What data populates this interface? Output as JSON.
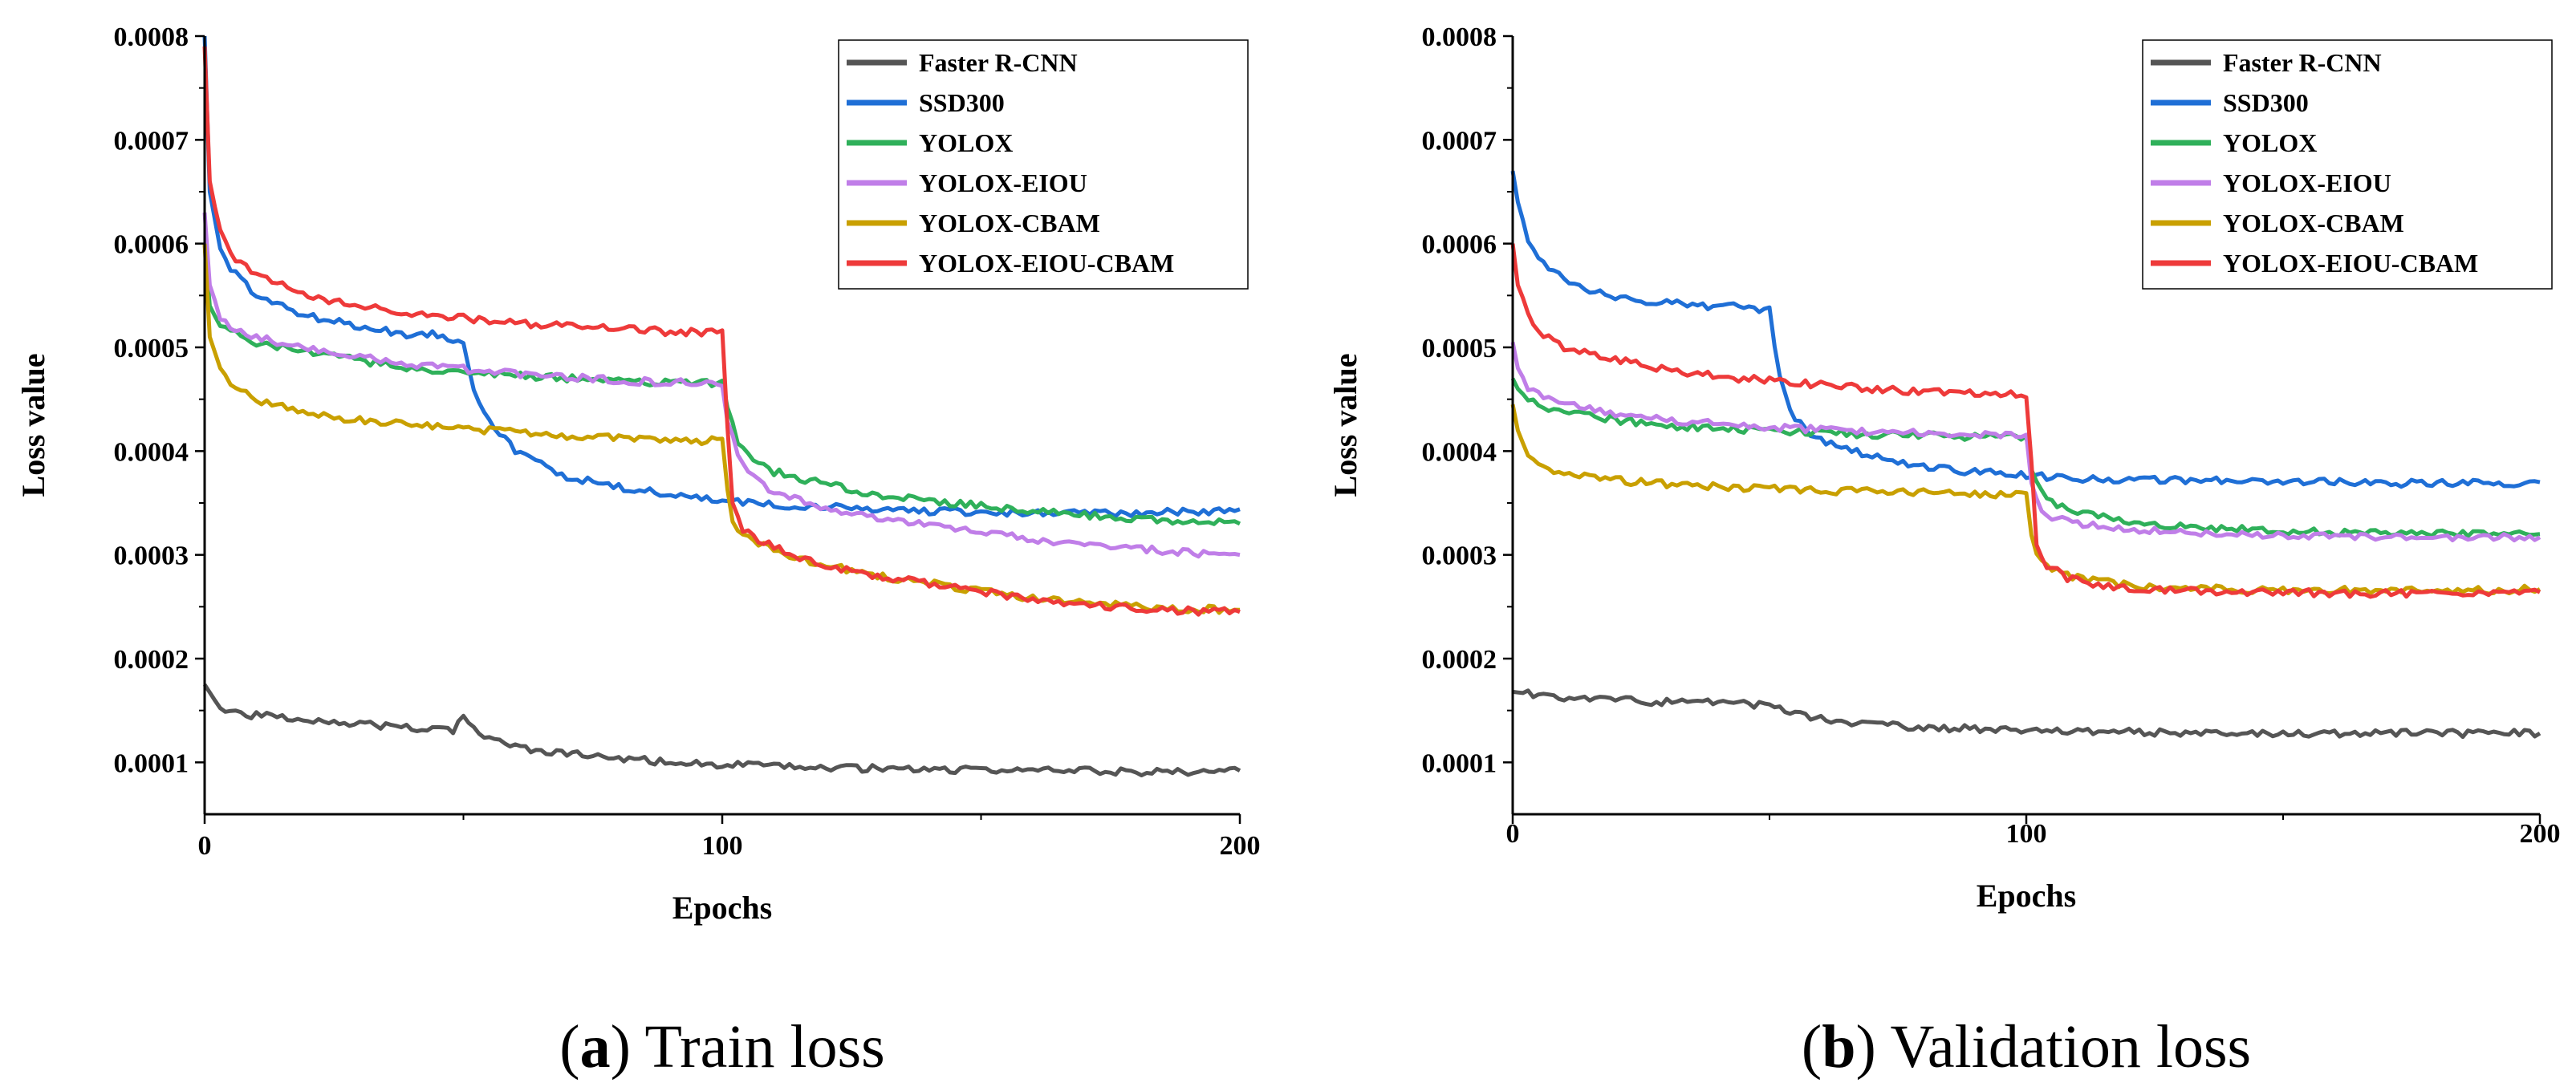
{
  "colors": {
    "Faster R-CNN": "#555555",
    "SSD300": "#1f6fd6",
    "YOLOX": "#2fb05a",
    "YOLOX-EIOU": "#c07ee8",
    "YOLOX-CBAM": "#c9a000",
    "YOLOX-EIOU-CBAM": "#ee3a3a"
  },
  "chart_data": [
    {
      "type": "line",
      "caption_letter": "a",
      "caption_text": " Train loss",
      "title": "",
      "xlabel": "Epochs",
      "ylabel": "Loss value",
      "xlim": [
        0,
        200
      ],
      "ylim": [
        5e-05,
        0.0008
      ],
      "xticks": [
        "0",
        "100",
        "200"
      ],
      "yticks": [
        "0.0001",
        "0.0002",
        "0.0003",
        "0.0004",
        "0.0005",
        "0.0006",
        "0.0007",
        "0.0008"
      ],
      "legend_position": "top-right",
      "series": [
        {
          "name": "Faster R-CNN",
          "x": [
            0,
            3,
            10,
            20,
            30,
            40,
            48,
            50,
            52,
            60,
            70,
            80,
            90,
            100,
            110,
            120,
            130,
            140,
            150,
            160,
            170,
            180,
            190,
            200
          ],
          "y": [
            0.000175,
            0.000152,
            0.000145,
            0.000142,
            0.000137,
            0.000133,
            0.000131,
            0.000142,
            0.000131,
            0.000114,
            0.000108,
            0.000104,
            0.0001,
            9.8e-05,
            9.6e-05,
            9.5e-05,
            9.4e-05,
            9.3e-05,
            9.3e-05,
            9.2e-05,
            9.2e-05,
            9.1e-05,
            9.1e-05,
            9.2e-05
          ]
        },
        {
          "name": "SSD300",
          "x": [
            0,
            1,
            3,
            5,
            10,
            20,
            30,
            40,
            45,
            50,
            52,
            55,
            60,
            65,
            70,
            80,
            90,
            100,
            110,
            120,
            130,
            140,
            150,
            160,
            170,
            180,
            190,
            200
          ],
          "y": [
            0.0008,
            0.00065,
            0.000595,
            0.000575,
            0.00055,
            0.00053,
            0.00052,
            0.000512,
            0.000513,
            0.000505,
            0.00046,
            0.00043,
            0.0004,
            0.000388,
            0.000375,
            0.000365,
            0.000358,
            0.000352,
            0.000348,
            0.000346,
            0.000344,
            0.000342,
            0.000341,
            0.00034,
            0.00034,
            0.000341,
            0.000341,
            0.000344
          ]
        },
        {
          "name": "YOLOX",
          "x": [
            0,
            1,
            3,
            5,
            10,
            20,
            30,
            40,
            50,
            60,
            70,
            80,
            90,
            100,
            101,
            103,
            105,
            110,
            120,
            130,
            140,
            150,
            160,
            170,
            180,
            190,
            200
          ],
          "y": [
            0.0006,
            0.00054,
            0.00052,
            0.000515,
            0.000505,
            0.000495,
            0.000487,
            0.00048,
            0.000476,
            0.000473,
            0.00047,
            0.000468,
            0.000466,
            0.000466,
            0.00044,
            0.00041,
            0.000395,
            0.00038,
            0.000368,
            0.000358,
            0.000352,
            0.000347,
            0.000342,
            0.000338,
            0.000335,
            0.000332,
            0.00033
          ]
        },
        {
          "name": "YOLOX-EIOU",
          "x": [
            0,
            1,
            3,
            5,
            10,
            20,
            30,
            40,
            50,
            60,
            70,
            80,
            90,
            100,
            101,
            103,
            105,
            110,
            120,
            130,
            140,
            150,
            160,
            170,
            180,
            190,
            200
          ],
          "y": [
            0.00063,
            0.00056,
            0.00053,
            0.00052,
            0.00051,
            0.000498,
            0.00049,
            0.000484,
            0.000479,
            0.000475,
            0.000471,
            0.000468,
            0.000466,
            0.000465,
            0.00043,
            0.000395,
            0.000378,
            0.00036,
            0.000345,
            0.000335,
            0.000328,
            0.000322,
            0.000315,
            0.00031,
            0.000306,
            0.000302,
            0.0003
          ]
        },
        {
          "name": "YOLOX-CBAM",
          "x": [
            0,
            1,
            3,
            5,
            10,
            20,
            30,
            40,
            50,
            60,
            70,
            80,
            90,
            100,
            101,
            102,
            104,
            108,
            115,
            120,
            130,
            140,
            150,
            160,
            170,
            180,
            190,
            200
          ],
          "y": [
            0.0006,
            0.00051,
            0.00048,
            0.000465,
            0.00045,
            0.000436,
            0.00043,
            0.000425,
            0.000422,
            0.000418,
            0.000415,
            0.000413,
            0.00041,
            0.00041,
            0.00036,
            0.00033,
            0.000318,
            0.000308,
            0.000297,
            0.00029,
            0.00028,
            0.000273,
            0.000265,
            0.000258,
            0.000254,
            0.00025,
            0.000248,
            0.000247
          ]
        },
        {
          "name": "YOLOX-EIOU-CBAM",
          "x": [
            0,
            1,
            3,
            5,
            10,
            20,
            30,
            40,
            50,
            60,
            70,
            80,
            90,
            100,
            101,
            102,
            104,
            108,
            115,
            120,
            130,
            140,
            150,
            160,
            170,
            180,
            190,
            200
          ],
          "y": [
            0.00079,
            0.00066,
            0.00061,
            0.00059,
            0.00057,
            0.00055,
            0.00054,
            0.000533,
            0.000528,
            0.000524,
            0.00052,
            0.000518,
            0.000515,
            0.000514,
            0.00042,
            0.00035,
            0.000325,
            0.000312,
            0.000298,
            0.00029,
            0.00028,
            0.000272,
            0.000265,
            0.000257,
            0.000252,
            0.000248,
            0.000246,
            0.000245
          ]
        }
      ]
    },
    {
      "type": "line",
      "caption_letter": "b",
      "caption_text": " Validation loss",
      "title": "",
      "xlabel": "Epochs",
      "ylabel": "Loss value",
      "xlim": [
        0,
        200
      ],
      "ylim": [
        5e-05,
        0.0008
      ],
      "xticks": [
        "0",
        "100",
        "200"
      ],
      "yticks": [
        "0.0001",
        "0.0002",
        "0.0003",
        "0.0004",
        "0.0005",
        "0.0006",
        "0.0007",
        "0.0008"
      ],
      "legend_position": "top-right",
      "series": [
        {
          "name": "Faster R-CNN",
          "x": [
            0,
            5,
            10,
            15,
            20,
            30,
            40,
            50,
            55,
            60,
            70,
            80,
            90,
            100,
            110,
            120,
            130,
            140,
            150,
            160,
            170,
            180,
            190,
            200
          ],
          "y": [
            0.000168,
            0.000165,
            0.000163,
            0.000162,
            0.00016,
            0.000158,
            0.000157,
            0.000155,
            0.000148,
            0.000142,
            0.000137,
            0.000134,
            0.000132,
            0.000131,
            0.00013,
            0.000129,
            0.000129,
            0.000129,
            0.000128,
            0.000128,
            0.000128,
            0.000128,
            0.000128,
            0.000128
          ]
        },
        {
          "name": "SSD300",
          "x": [
            0,
            1,
            3,
            5,
            10,
            15,
            20,
            30,
            40,
            45,
            50,
            52,
            55,
            60,
            70,
            80,
            90,
            100,
            110,
            120,
            130,
            140,
            150,
            160,
            170,
            180,
            190,
            200
          ],
          "y": [
            0.00067,
            0.00064,
            0.000605,
            0.000585,
            0.000565,
            0.000555,
            0.000548,
            0.000543,
            0.000538,
            0.00054,
            0.000535,
            0.00047,
            0.00043,
            0.00041,
            0.000395,
            0.000385,
            0.00038,
            0.000376,
            0.000374,
            0.000372,
            0.000372,
            0.000371,
            0.00037,
            0.00037,
            0.000369,
            0.000369,
            0.000369,
            0.00037
          ]
        },
        {
          "name": "YOLOX",
          "x": [
            0,
            1,
            3,
            5,
            10,
            20,
            30,
            40,
            50,
            60,
            70,
            80,
            90,
            100,
            101,
            103,
            105,
            110,
            120,
            130,
            140,
            150,
            160,
            170,
            180,
            190,
            200
          ],
          "y": [
            0.00047,
            0.00046,
            0.00045,
            0.000445,
            0.000438,
            0.00043,
            0.000425,
            0.000422,
            0.00042,
            0.000418,
            0.000416,
            0.000415,
            0.000414,
            0.000414,
            0.00038,
            0.00036,
            0.00035,
            0.00034,
            0.000332,
            0.000327,
            0.000325,
            0.000323,
            0.000322,
            0.000321,
            0.00032,
            0.00032,
            0.00032
          ]
        },
        {
          "name": "YOLOX-EIOU",
          "x": [
            0,
            1,
            3,
            5,
            10,
            20,
            30,
            40,
            50,
            60,
            70,
            80,
            90,
            100,
            101,
            103,
            105,
            110,
            120,
            130,
            140,
            150,
            160,
            170,
            180,
            190,
            200
          ],
          "y": [
            0.000505,
            0.00048,
            0.000462,
            0.000455,
            0.000445,
            0.000435,
            0.00043,
            0.000426,
            0.000423,
            0.000421,
            0.000419,
            0.000417,
            0.000416,
            0.000415,
            0.00037,
            0.000345,
            0.000337,
            0.00033,
            0.000325,
            0.000322,
            0.00032,
            0.000319,
            0.000318,
            0.000318,
            0.000317,
            0.000317,
            0.000317
          ]
        },
        {
          "name": "YOLOX-CBAM",
          "x": [
            0,
            1,
            3,
            5,
            10,
            20,
            30,
            40,
            50,
            60,
            70,
            80,
            90,
            100,
            101,
            102,
            104,
            108,
            115,
            120,
            130,
            140,
            150,
            160,
            170,
            180,
            190,
            200
          ],
          "y": [
            0.000445,
            0.00042,
            0.000395,
            0.000385,
            0.000378,
            0.000372,
            0.000368,
            0.000366,
            0.000364,
            0.000362,
            0.000361,
            0.00036,
            0.000358,
            0.000357,
            0.00032,
            0.000298,
            0.000288,
            0.00028,
            0.000274,
            0.000271,
            0.000268,
            0.000267,
            0.000266,
            0.000266,
            0.000266,
            0.000266,
            0.000266,
            0.000267
          ]
        },
        {
          "name": "YOLOX-EIOU-CBAM",
          "x": [
            0,
            1,
            3,
            5,
            10,
            20,
            30,
            40,
            50,
            60,
            70,
            80,
            90,
            100,
            101,
            102,
            104,
            108,
            115,
            120,
            130,
            140,
            150,
            160,
            170,
            180,
            190,
            200
          ],
          "y": [
            0.0006,
            0.00056,
            0.000535,
            0.000515,
            0.0005,
            0.000488,
            0.000478,
            0.000472,
            0.000468,
            0.000464,
            0.00046,
            0.000457,
            0.000455,
            0.000455,
            0.00039,
            0.00031,
            0.00029,
            0.000278,
            0.00027,
            0.000267,
            0.000265,
            0.000264,
            0.000264,
            0.000263,
            0.000263,
            0.000263,
            0.000263,
            0.000264
          ]
        }
      ]
    }
  ]
}
